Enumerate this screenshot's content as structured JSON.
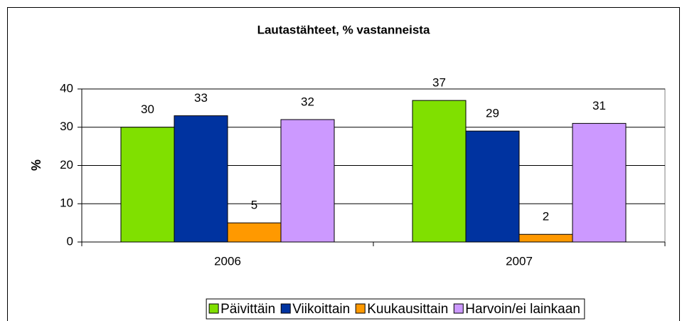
{
  "chart_data": {
    "type": "bar",
    "title": "Lautastähteet, % vastanneista",
    "y_label": "%",
    "categories": [
      "2006",
      "2007"
    ],
    "series": [
      {
        "name": "Päivittäin",
        "color": "#80e000",
        "values": [
          30,
          37
        ]
      },
      {
        "name": "Viikoittain",
        "color": "#0033a0",
        "values": [
          33,
          29
        ]
      },
      {
        "name": "Kuukausittain",
        "color": "#ff9900",
        "values": [
          5,
          2
        ]
      },
      {
        "name": "Harvoin/ei lainkaan",
        "color": "#cc99ff",
        "values": [
          32,
          31
        ]
      }
    ],
    "ylim": [
      0,
      40
    ],
    "yticks": [
      0,
      10,
      20,
      30,
      40
    ],
    "grid": true,
    "legend": "bottom"
  }
}
